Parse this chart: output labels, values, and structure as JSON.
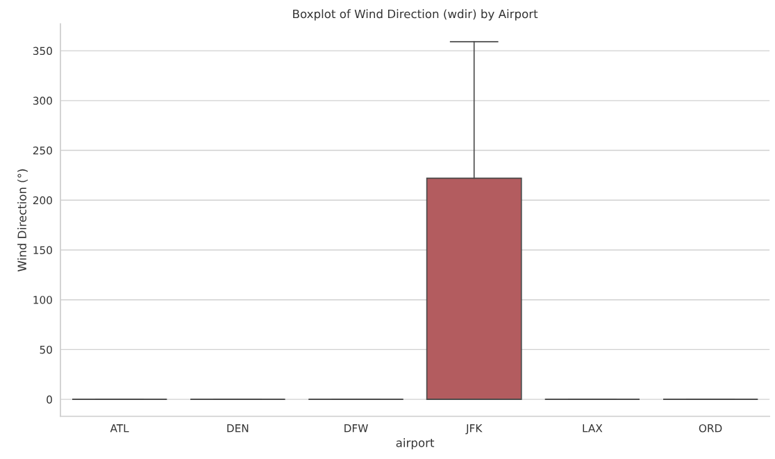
{
  "chart_data": {
    "type": "box",
    "title": "Boxplot of Wind Direction (wdir) by Airport",
    "xlabel": "airport",
    "ylabel": "Wind Direction (°)",
    "categories": [
      "ATL",
      "DEN",
      "DFW",
      "JFK",
      "LAX",
      "ORD"
    ],
    "boxes": [
      {
        "low": 0,
        "q1": 0,
        "median": 0,
        "q3": 0,
        "high": 0
      },
      {
        "low": 0,
        "q1": 0,
        "median": 0,
        "q3": 0,
        "high": 0
      },
      {
        "low": 0,
        "q1": 0,
        "median": 0,
        "q3": 0,
        "high": 0
      },
      {
        "low": 0,
        "q1": 0,
        "median": 0,
        "q3": 222,
        "high": 359
      },
      {
        "low": 0,
        "q1": 0,
        "median": 0,
        "q3": 0,
        "high": 0
      },
      {
        "low": 0,
        "q1": 0,
        "median": 0,
        "q3": 0,
        "high": 0
      }
    ],
    "colors": [
      "#4a4a4a",
      "#4a4a4a",
      "#4a4a4a",
      "#b35c5f",
      "#4a4a4a",
      "#4a4a4a"
    ],
    "ylim": [
      -17,
      377
    ],
    "yticks": [
      0,
      50,
      100,
      150,
      200,
      250,
      300,
      350
    ],
    "grid": "y"
  }
}
